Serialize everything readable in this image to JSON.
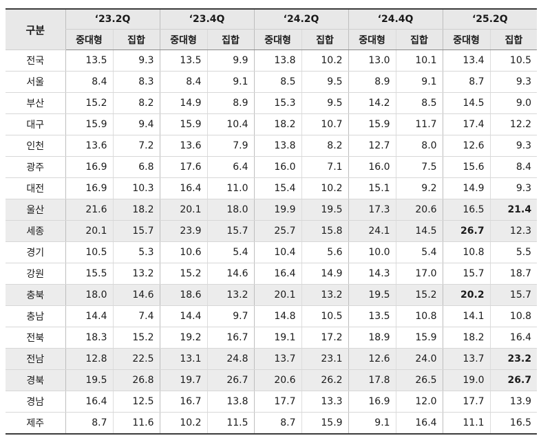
{
  "table": {
    "corner_label": "구분",
    "quarters": [
      "‘23.2Q",
      "‘23.4Q",
      "‘24.2Q",
      "‘24.4Q",
      "‘25.2Q"
    ],
    "sub_headers": [
      "중대형",
      "집합"
    ],
    "rows": [
      {
        "region": "전국",
        "values": [
          "13.5",
          "9.3",
          "13.5",
          "9.9",
          "13.8",
          "10.2",
          "13.0",
          "10.1",
          "13.4",
          "10.5"
        ],
        "highlight": false,
        "bold": []
      },
      {
        "region": "서울",
        "values": [
          "8.4",
          "8.3",
          "8.4",
          "9.1",
          "8.5",
          "9.5",
          "8.9",
          "9.1",
          "8.7",
          "9.3"
        ],
        "highlight": false,
        "bold": []
      },
      {
        "region": "부산",
        "values": [
          "15.2",
          "8.2",
          "14.9",
          "8.9",
          "15.3",
          "9.5",
          "14.2",
          "8.5",
          "14.5",
          "9.0"
        ],
        "highlight": false,
        "bold": []
      },
      {
        "region": "대구",
        "values": [
          "15.9",
          "9.4",
          "15.9",
          "10.4",
          "18.2",
          "10.7",
          "15.9",
          "11.7",
          "17.4",
          "12.2"
        ],
        "highlight": false,
        "bold": []
      },
      {
        "region": "인천",
        "values": [
          "13.6",
          "7.2",
          "13.6",
          "7.9",
          "13.8",
          "8.2",
          "12.7",
          "8.0",
          "12.6",
          "9.3"
        ],
        "highlight": false,
        "bold": []
      },
      {
        "region": "광주",
        "values": [
          "16.9",
          "6.8",
          "17.6",
          "6.4",
          "16.0",
          "7.1",
          "16.0",
          "7.5",
          "15.6",
          "8.4"
        ],
        "highlight": false,
        "bold": []
      },
      {
        "region": "대전",
        "values": [
          "16.9",
          "10.3",
          "16.4",
          "11.0",
          "15.4",
          "10.2",
          "15.1",
          "9.2",
          "14.9",
          "9.3"
        ],
        "highlight": false,
        "bold": []
      },
      {
        "region": "울산",
        "values": [
          "21.6",
          "18.2",
          "20.1",
          "18.0",
          "19.9",
          "19.5",
          "17.3",
          "20.6",
          "16.5",
          "21.4"
        ],
        "highlight": true,
        "bold": [
          9
        ]
      },
      {
        "region": "세종",
        "values": [
          "20.1",
          "15.7",
          "23.9",
          "15.7",
          "25.7",
          "15.8",
          "24.1",
          "14.5",
          "26.7",
          "12.3"
        ],
        "highlight": true,
        "bold": [
          8
        ]
      },
      {
        "region": "경기",
        "values": [
          "10.5",
          "5.3",
          "10.6",
          "5.4",
          "10.4",
          "5.6",
          "10.0",
          "5.4",
          "10.8",
          "5.5"
        ],
        "highlight": false,
        "bold": []
      },
      {
        "region": "강원",
        "values": [
          "15.5",
          "13.2",
          "15.2",
          "14.6",
          "16.4",
          "14.9",
          "14.3",
          "17.0",
          "15.7",
          "18.7"
        ],
        "highlight": false,
        "bold": []
      },
      {
        "region": "충북",
        "values": [
          "18.0",
          "14.6",
          "18.6",
          "13.2",
          "20.1",
          "13.2",
          "19.5",
          "15.2",
          "20.2",
          "15.7"
        ],
        "highlight": true,
        "bold": [
          8
        ]
      },
      {
        "region": "충남",
        "values": [
          "14.4",
          "7.4",
          "14.4",
          "9.7",
          "14.8",
          "10.5",
          "13.5",
          "10.8",
          "14.1",
          "10.8"
        ],
        "highlight": false,
        "bold": []
      },
      {
        "region": "전북",
        "values": [
          "18.3",
          "15.2",
          "19.2",
          "16.7",
          "19.1",
          "17.2",
          "18.9",
          "15.9",
          "18.2",
          "16.4"
        ],
        "highlight": false,
        "bold": []
      },
      {
        "region": "전남",
        "values": [
          "12.8",
          "22.5",
          "13.1",
          "24.8",
          "13.7",
          "23.1",
          "12.6",
          "24.0",
          "13.7",
          "23.2"
        ],
        "highlight": true,
        "bold": [
          9
        ]
      },
      {
        "region": "경북",
        "values": [
          "19.5",
          "26.8",
          "19.7",
          "26.7",
          "20.6",
          "26.2",
          "17.8",
          "26.5",
          "19.0",
          "26.7"
        ],
        "highlight": true,
        "bold": [
          9
        ]
      },
      {
        "region": "경남",
        "values": [
          "16.4",
          "12.5",
          "16.7",
          "13.8",
          "17.7",
          "13.3",
          "16.9",
          "12.0",
          "17.7",
          "13.9"
        ],
        "highlight": false,
        "bold": []
      },
      {
        "region": "제주",
        "values": [
          "8.7",
          "11.6",
          "10.2",
          "11.5",
          "8.7",
          "15.9",
          "9.1",
          "16.4",
          "11.1",
          "16.5"
        ],
        "highlight": false,
        "bold": []
      }
    ]
  }
}
